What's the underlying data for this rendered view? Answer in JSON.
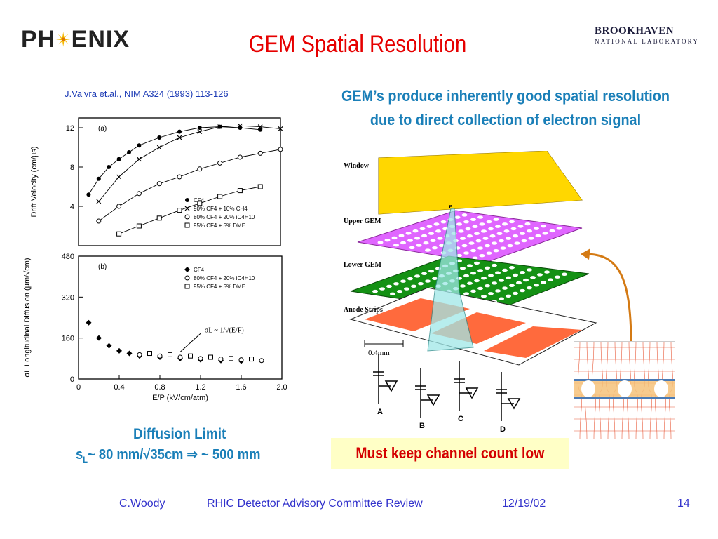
{
  "header": {
    "phenix_logo_text_left": "PH",
    "phenix_logo_text_right": "ENIX",
    "title": "GEM Spatial Resolution",
    "bnl_line1": "BROOKHAVEN",
    "bnl_line2": "NATIONAL LABORATORY"
  },
  "reference": "J.Va’vra et.al., NIM A324 (1993) 113-126",
  "intro_line1": "GEM’s produce inherently good spatial resolution",
  "intro_line2": "due to direct collection of electron signal",
  "chart_data": [
    {
      "type": "line",
      "panel_label": "(a)",
      "ylabel": "Drift Velocity (cm/μs)",
      "xlim": [
        0,
        2.0
      ],
      "ylim": [
        0,
        13
      ],
      "y_ticks": [
        "4",
        "8",
        "12"
      ],
      "legend": [
        "CF4",
        "90% CF4 + 10% CH4",
        "80% CF4 + 20% iC4H10",
        "95% CF4 + 5% DME"
      ],
      "series": [
        {
          "name": "CF4",
          "marker": "filled-circle",
          "x": [
            0.1,
            0.2,
            0.3,
            0.4,
            0.5,
            0.6,
            0.8,
            1.0,
            1.2,
            1.4,
            1.6,
            1.8
          ],
          "y": [
            5.2,
            6.8,
            8.0,
            8.8,
            9.5,
            10.2,
            11.0,
            11.6,
            12.0,
            12.1,
            12.0,
            11.8
          ]
        },
        {
          "name": "90% CF4 + 10% CH4",
          "marker": "x",
          "x": [
            0.2,
            0.4,
            0.6,
            0.8,
            1.0,
            1.2,
            1.4,
            1.6,
            1.8,
            2.0
          ],
          "y": [
            4.5,
            7.0,
            8.8,
            10.0,
            11.0,
            11.6,
            12.1,
            12.2,
            12.1,
            11.9
          ]
        },
        {
          "name": "80% CF4 + 20% iC4H10",
          "marker": "open-circle",
          "x": [
            0.2,
            0.4,
            0.6,
            0.8,
            1.0,
            1.2,
            1.4,
            1.6,
            1.8,
            2.0
          ],
          "y": [
            2.5,
            4.0,
            5.3,
            6.3,
            7.0,
            7.8,
            8.4,
            9.0,
            9.4,
            9.8
          ]
        },
        {
          "name": "95% CF4 + 5% DME",
          "marker": "open-square",
          "x": [
            0.4,
            0.6,
            0.8,
            1.0,
            1.2,
            1.4,
            1.6,
            1.8
          ],
          "y": [
            1.2,
            2.0,
            2.8,
            3.6,
            4.3,
            5.0,
            5.6,
            6.0
          ]
        }
      ]
    },
    {
      "type": "scatter",
      "panel_label": "(b)",
      "xlabel": "E/P (kV/cm/atm)",
      "ylabel": "σL Longitudinal Diffusion (μm/√cm)",
      "xlim": [
        0,
        2.0
      ],
      "ylim": [
        0,
        480
      ],
      "x_ticks": [
        "0",
        "0.4",
        "0.8",
        "1.2",
        "1.6",
        "2.0"
      ],
      "y_ticks": [
        "0",
        "160",
        "320",
        "480"
      ],
      "legend": [
        "CF4",
        "80% CF4 + 20% iC4H10",
        "95% CF4 + 5% DME"
      ],
      "annotation": "σL ~ 1/√(E/P)",
      "series": [
        {
          "name": "CF4",
          "marker": "filled-diamond",
          "x": [
            0.1,
            0.2,
            0.3,
            0.4,
            0.5,
            0.6,
            0.8,
            1.0,
            1.2,
            1.4,
            1.6
          ],
          "y": [
            220,
            160,
            130,
            110,
            100,
            90,
            85,
            80,
            75,
            72,
            70
          ]
        },
        {
          "name": "80% CF4 + 20% iC4H10",
          "marker": "open-circle",
          "x": [
            0.6,
            0.8,
            1.0,
            1.2,
            1.4,
            1.6,
            1.8
          ],
          "y": [
            95,
            90,
            85,
            80,
            78,
            75,
            72
          ]
        },
        {
          "name": "95% CF4 + 5% DME",
          "marker": "open-square",
          "x": [
            0.7,
            0.9,
            1.1,
            1.3,
            1.5,
            1.7
          ],
          "y": [
            100,
            95,
            90,
            85,
            80,
            78
          ]
        }
      ]
    }
  ],
  "diffusion": {
    "title": "Diffusion Limit",
    "sigma": "s",
    "sub": "L",
    "formula": "~ 80 mm/√35cm ⇒ ~ 500 mm"
  },
  "diagram": {
    "window": "Window",
    "upper_gem": "Upper GEM",
    "lower_gem": "Lower GEM",
    "anode_strips": "Anode Strips",
    "pitch": "0.4mm",
    "electron": "e",
    "channels": [
      "A",
      "B",
      "C",
      "D"
    ],
    "colors": {
      "window": "#ffd700",
      "upper_gem": "#e066ff",
      "lower_gem": "#149114",
      "anode": "#ff6a3d",
      "arrow": "#d47a14"
    }
  },
  "callout": "Must keep channel count low",
  "footer": {
    "author": "C.Woody",
    "event": "RHIC Detector Advisory Committee Review",
    "date": "12/19/02",
    "page": "14"
  }
}
